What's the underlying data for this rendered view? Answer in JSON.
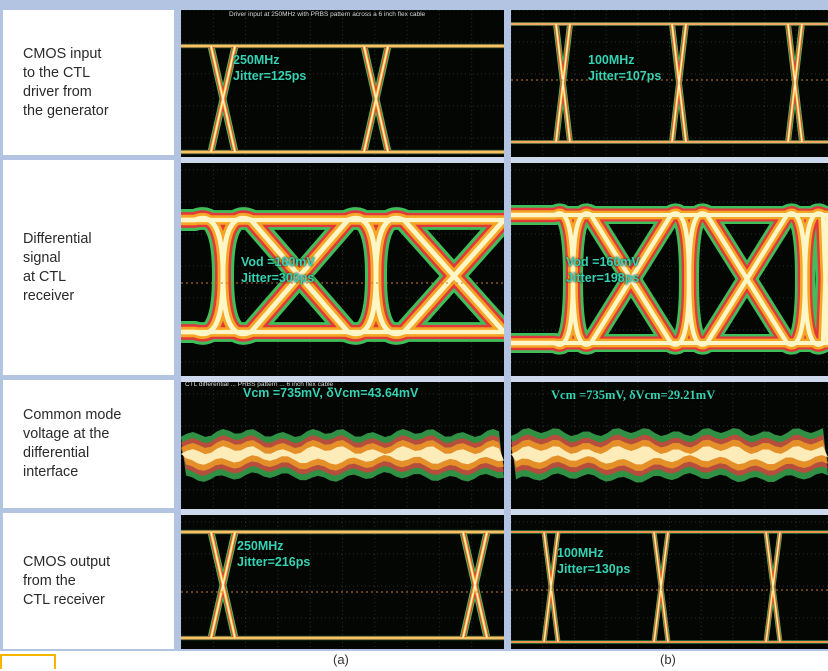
{
  "rows": [
    {
      "label": "CMOS input\nto the CTL\ndriver from\nthe generator"
    },
    {
      "label": "Differential\nsignal\nat CTL\nreceiver"
    },
    {
      "label": "Common mode\nvoltage at the\ndifferential\ninterface"
    },
    {
      "label": "CMOS output\nfrom the\nCTL receiver"
    }
  ],
  "panel_a": {
    "caption": "(a)",
    "header_note": "Driver input at 250MHz with PRBS pattern across a 6 inch flex cable",
    "cm_note": "CTL differential ... PRBS pattern ... 6 inch flex cable",
    "row1": "250MHz\nJitter=125ps",
    "row2": "Vod =160mV\nJitter=300ps",
    "row3": "Vcm =735mV, δVcm=43.64mV",
    "row4": "250MHz\nJitter=216ps"
  },
  "panel_b": {
    "caption": "(b)",
    "row1": "100MHz\nJitter=107ps",
    "row2": "Vod =160mV\nJitter=198ps",
    "row3": "Vcm =735mV,  δVcm=29.21mV",
    "row4": "100MHz\nJitter=130ps"
  },
  "colors": {
    "frame": "#b3c4e3",
    "annotation": "#35d3b3",
    "scope_bg": "#040604",
    "trace_hot": "#fff6c8",
    "trace_warm": "#f5a623",
    "trace_red": "#e2383b",
    "trace_green": "#3fbf5a"
  }
}
